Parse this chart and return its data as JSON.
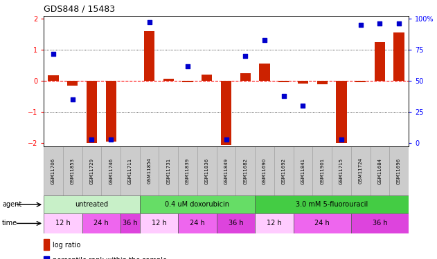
{
  "title": "GDS848 / 15483",
  "samples": [
    "GSM11706",
    "GSM11853",
    "GSM11729",
    "GSM11746",
    "GSM11711",
    "GSM11854",
    "GSM11731",
    "GSM11839",
    "GSM11836",
    "GSM11849",
    "GSM11682",
    "GSM11690",
    "GSM11692",
    "GSM11841",
    "GSM11901",
    "GSM11715",
    "GSM11724",
    "GSM11684",
    "GSM11696"
  ],
  "log_ratio": [
    0.18,
    -0.15,
    -2.0,
    -1.95,
    0.0,
    1.6,
    0.08,
    -0.05,
    0.2,
    -2.05,
    0.25,
    0.55,
    -0.05,
    -0.08,
    -0.1,
    -2.0,
    -0.05,
    1.25,
    1.55
  ],
  "percentile": [
    72,
    35,
    3,
    3,
    null,
    97,
    null,
    62,
    null,
    3,
    70,
    83,
    38,
    30,
    null,
    3,
    95,
    96,
    96
  ],
  "agent_groups": [
    {
      "label": "untreated",
      "start": 0,
      "end": 5,
      "color": "#c8f0c8"
    },
    {
      "label": "0.4 uM doxorubicin",
      "start": 5,
      "end": 11,
      "color": "#66dd66"
    },
    {
      "label": "3.0 mM 5-fluorouracil",
      "start": 11,
      "end": 19,
      "color": "#44cc44"
    }
  ],
  "time_groups": [
    {
      "label": "12 h",
      "start": 0,
      "end": 2,
      "color": "#ffccff"
    },
    {
      "label": "24 h",
      "start": 2,
      "end": 4,
      "color": "#ee66ee"
    },
    {
      "label": "36 h",
      "start": 4,
      "end": 5,
      "color": "#dd44dd"
    },
    {
      "label": "12 h",
      "start": 5,
      "end": 7,
      "color": "#ffccff"
    },
    {
      "label": "24 h",
      "start": 7,
      "end": 9,
      "color": "#ee66ee"
    },
    {
      "label": "36 h",
      "start": 9,
      "end": 11,
      "color": "#dd44dd"
    },
    {
      "label": "12 h",
      "start": 11,
      "end": 13,
      "color": "#ffccff"
    },
    {
      "label": "24 h",
      "start": 13,
      "end": 16,
      "color": "#ee66ee"
    },
    {
      "label": "36 h",
      "start": 16,
      "end": 19,
      "color": "#dd44dd"
    }
  ],
  "ylim": [
    -2.1,
    2.1
  ],
  "yticks_left": [
    -2,
    -1,
    0,
    1,
    2
  ],
  "yticks_right": [
    0,
    25,
    50,
    75,
    100
  ],
  "bar_color": "#cc2200",
  "dot_color": "#0000cc",
  "bg_color": "#ffffff",
  "grid_color": "#000000",
  "zero_line_color": "#ff0000",
  "label_bg_color": "#cccccc"
}
